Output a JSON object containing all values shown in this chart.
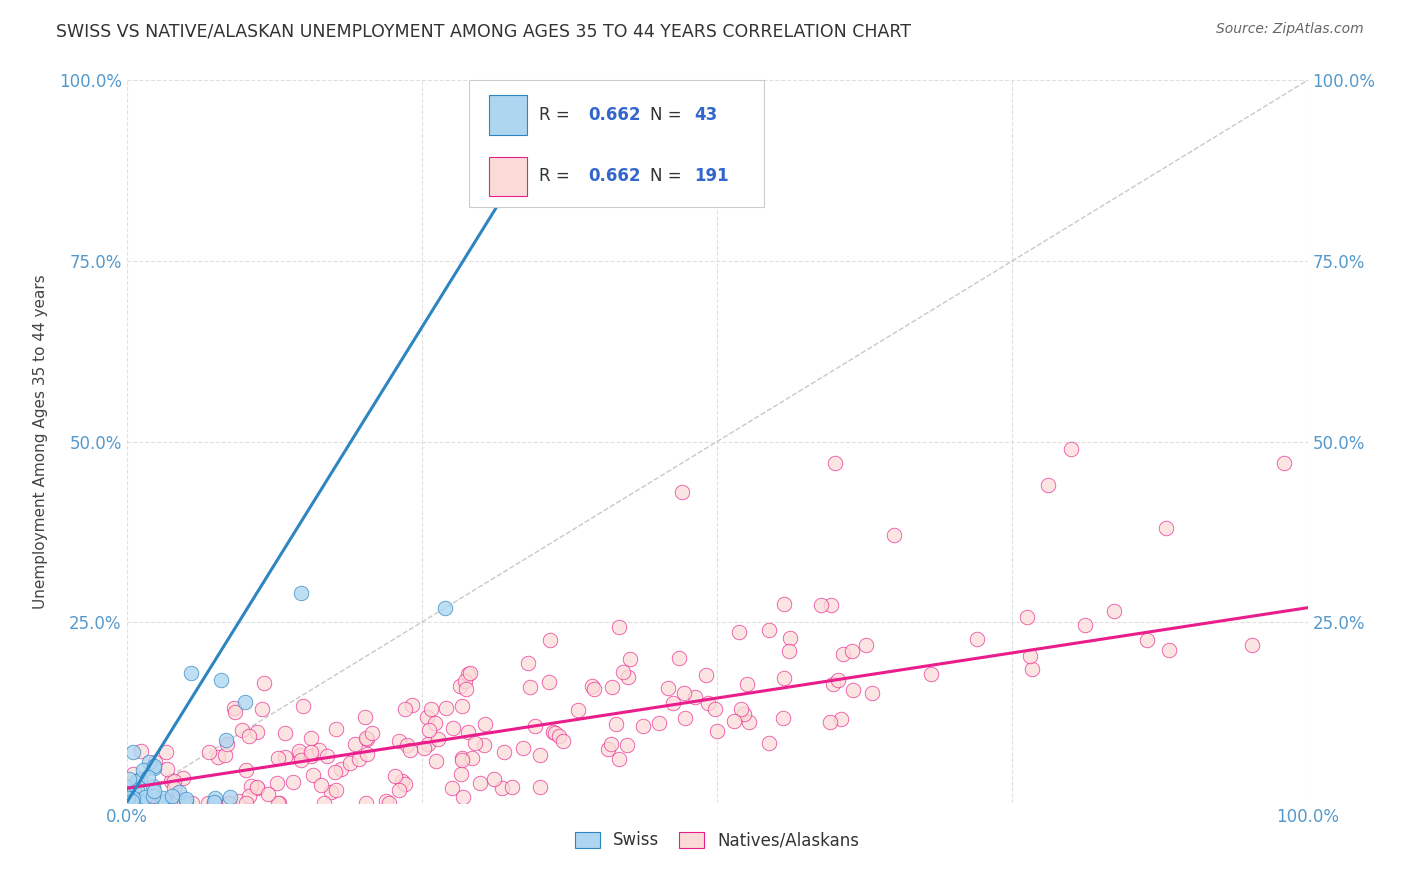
{
  "title": "SWISS VS NATIVE/ALASKAN UNEMPLOYMENT AMONG AGES 35 TO 44 YEARS CORRELATION CHART",
  "source": "Source: ZipAtlas.com",
  "ylabel": "Unemployment Among Ages 35 to 44 years",
  "swiss_R": 0.662,
  "swiss_N": 43,
  "native_R": 0.662,
  "native_N": 191,
  "swiss_fill_color": "#AED6F1",
  "swiss_edge_color": "#2E86C1",
  "native_fill_color": "#FADBD8",
  "native_edge_color": "#E91E8C",
  "swiss_line_color": "#2E86C1",
  "native_line_color": "#E91E8C",
  "ref_line_color": "#BBBBBB",
  "title_color": "#333333",
  "source_color": "#666666",
  "legend_value_color": "#3366CC",
  "axis_tick_color": "#5599CC",
  "background_color": "#FFFFFF",
  "grid_color": "#DDDDDD",
  "xlim": [
    0,
    1.0
  ],
  "ylim": [
    0,
    1.0
  ],
  "x_ticks": [
    0.0,
    0.25,
    0.5,
    0.75,
    1.0
  ],
  "x_tick_labels": [
    "0.0%",
    "",
    "",
    "",
    "100.0%"
  ],
  "y_ticks": [
    0.25,
    0.5,
    0.75,
    1.0
  ],
  "y_tick_labels": [
    "25.0%",
    "50.0%",
    "75.0%",
    "100.0%"
  ],
  "right_y_tick_labels": [
    "25.0%",
    "50.0%",
    "75.0%",
    "100.0%"
  ],
  "swiss_seed": 42,
  "native_seed": 7,
  "swiss_line_x0": 0.0,
  "swiss_line_y0": 0.0,
  "swiss_line_x1": 0.38,
  "swiss_line_y1": 1.0,
  "native_line_x0": 0.0,
  "native_line_y0": 0.02,
  "native_line_x1": 1.0,
  "native_line_y1": 0.27
}
